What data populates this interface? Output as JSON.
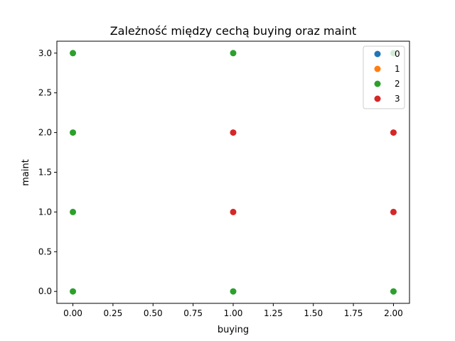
{
  "chart_data": {
    "type": "scatter",
    "title": "Zależność między cechą buying oraz maint",
    "xlabel": "buying",
    "ylabel": "maint",
    "xlim": [
      -0.1,
      2.1
    ],
    "ylim": [
      -0.15,
      3.15
    ],
    "xticks": [
      "0.00",
      "0.25",
      "0.50",
      "0.75",
      "1.00",
      "1.25",
      "1.50",
      "1.75",
      "2.00"
    ],
    "yticks": [
      "0.0",
      "0.5",
      "1.0",
      "1.5",
      "2.0",
      "2.5",
      "3.0"
    ],
    "grid": false,
    "legend_position": "top-right",
    "series": [
      {
        "name": "0",
        "color": "#1f77b4",
        "points": []
      },
      {
        "name": "1",
        "color": "#ff7f0e",
        "points": []
      },
      {
        "name": "2",
        "color": "#2ca02c",
        "points": [
          [
            0,
            0
          ],
          [
            0,
            1
          ],
          [
            0,
            2
          ],
          [
            0,
            3
          ],
          [
            1,
            0
          ],
          [
            1,
            3
          ],
          [
            2,
            0
          ],
          [
            2,
            3
          ]
        ]
      },
      {
        "name": "3",
        "color": "#d62728",
        "points": [
          [
            1,
            1
          ],
          [
            1,
            2
          ],
          [
            2,
            1
          ],
          [
            2,
            2
          ]
        ]
      }
    ]
  }
}
